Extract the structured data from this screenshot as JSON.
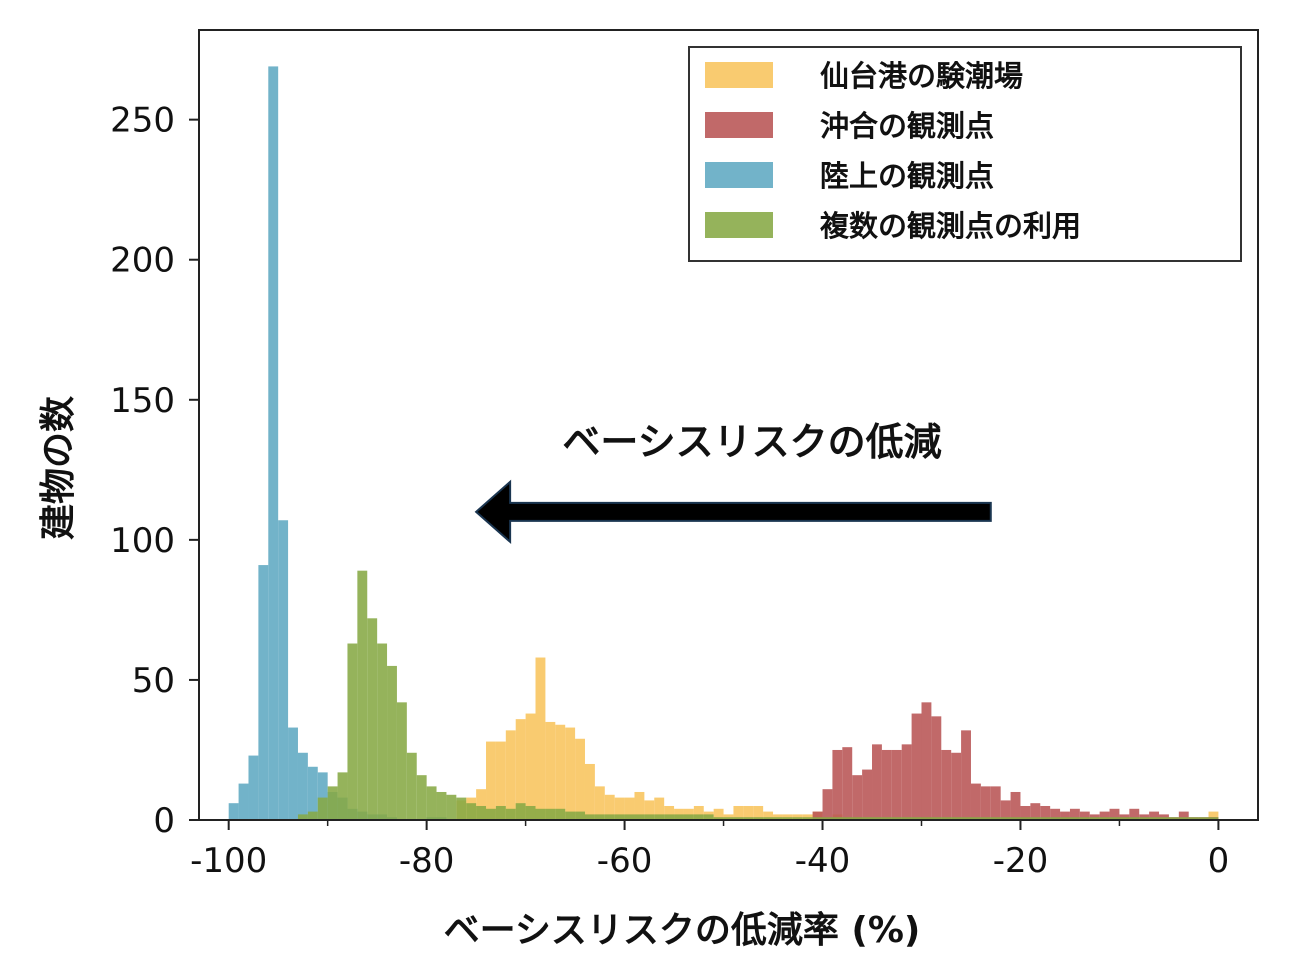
{
  "chart_data": {
    "type": "histogram",
    "xlabel": "ベーシスリスクの低減率 (%)",
    "ylabel": "建物の数",
    "xlim": [
      -103,
      4
    ],
    "ylim": [
      0,
      282
    ],
    "xticks": [
      -100,
      -80,
      -60,
      -40,
      -20,
      0
    ],
    "xtick_labels": [
      "-100",
      "-80",
      "-60",
      "-40",
      "-20",
      "0"
    ],
    "yticks": [
      0,
      50,
      100,
      150,
      200,
      250
    ],
    "ytick_labels": [
      "0",
      "50",
      "100",
      "150",
      "200",
      "250"
    ],
    "bin_width": 1,
    "grid": false,
    "legend_position": "top-right",
    "annotation": {
      "text": "ベーシスリスクの低減",
      "arrow": {
        "from_x": -23,
        "to_x": -75,
        "y": 110
      }
    },
    "series": [
      {
        "name": "仙台港の験潮場",
        "color": "#f8c45c",
        "bins": [
          [
            -77,
            7
          ],
          [
            -76,
            8
          ],
          [
            -75,
            11
          ],
          [
            -74,
            28
          ],
          [
            -73,
            28
          ],
          [
            -72,
            32
          ],
          [
            -71,
            36
          ],
          [
            -70,
            38
          ],
          [
            -69,
            58
          ],
          [
            -68,
            35
          ],
          [
            -67,
            34
          ],
          [
            -66,
            33
          ],
          [
            -65,
            29
          ],
          [
            -64,
            20
          ],
          [
            -63,
            12
          ],
          [
            -62,
            9
          ],
          [
            -61,
            8
          ],
          [
            -60,
            8
          ],
          [
            -59,
            10
          ],
          [
            -58,
            7
          ],
          [
            -57,
            8
          ],
          [
            -56,
            5
          ],
          [
            -55,
            4
          ],
          [
            -54,
            4
          ],
          [
            -53,
            5
          ],
          [
            -52,
            3
          ],
          [
            -51,
            4
          ],
          [
            -50,
            2
          ],
          [
            -49,
            5
          ],
          [
            -48,
            5
          ],
          [
            -47,
            5
          ],
          [
            -46,
            3
          ],
          [
            -45,
            2
          ],
          [
            -44,
            2
          ],
          [
            -43,
            2
          ],
          [
            -42,
            2
          ],
          [
            -41,
            3
          ],
          [
            -40,
            1
          ],
          [
            -39,
            2
          ],
          [
            -38,
            1
          ],
          [
            -37,
            1
          ],
          [
            -30,
            1
          ],
          [
            -20,
            1
          ],
          [
            -10,
            1
          ],
          [
            -1,
            3
          ]
        ]
      },
      {
        "name": "沖合の観測点",
        "color": "#b85454",
        "bins": [
          [
            -41,
            3
          ],
          [
            -40,
            11
          ],
          [
            -39,
            25
          ],
          [
            -38,
            26
          ],
          [
            -37,
            16
          ],
          [
            -36,
            18
          ],
          [
            -35,
            27
          ],
          [
            -34,
            25
          ],
          [
            -33,
            25
          ],
          [
            -32,
            27
          ],
          [
            -31,
            38
          ],
          [
            -30,
            42
          ],
          [
            -29,
            37
          ],
          [
            -28,
            25
          ],
          [
            -27,
            24
          ],
          [
            -26,
            32
          ],
          [
            -25,
            13
          ],
          [
            -24,
            12
          ],
          [
            -23,
            12
          ],
          [
            -22,
            7
          ],
          [
            -21,
            10
          ],
          [
            -20,
            5
          ],
          [
            -19,
            6
          ],
          [
            -18,
            5
          ],
          [
            -17,
            4
          ],
          [
            -16,
            3
          ],
          [
            -15,
            4
          ],
          [
            -14,
            3
          ],
          [
            -13,
            2
          ],
          [
            -12,
            3
          ],
          [
            -11,
            4
          ],
          [
            -10,
            2
          ],
          [
            -9,
            4
          ],
          [
            -8,
            2
          ],
          [
            -7,
            3
          ],
          [
            -6,
            2
          ],
          [
            -5,
            1
          ],
          [
            -4,
            3
          ],
          [
            -3,
            1
          ],
          [
            -2,
            1
          ],
          [
            -1,
            1
          ]
        ]
      },
      {
        "name": "陸上の観測点",
        "color": "#5ea9c2",
        "bins": [
          [
            -100,
            6
          ],
          [
            -99,
            13
          ],
          [
            -98,
            23
          ],
          [
            -97,
            91
          ],
          [
            -96,
            269
          ],
          [
            -95,
            107
          ],
          [
            -94,
            33
          ],
          [
            -93,
            24
          ],
          [
            -92,
            19
          ],
          [
            -91,
            17
          ],
          [
            -90,
            10
          ],
          [
            -89,
            8
          ],
          [
            -88,
            4
          ],
          [
            -87,
            3
          ],
          [
            -86,
            2
          ],
          [
            -85,
            2
          ],
          [
            -84,
            1
          ],
          [
            -80,
            1
          ],
          [
            -79,
            1
          ]
        ]
      },
      {
        "name": "複数の観測点の利用",
        "color": "#86a844",
        "bins": [
          [
            -93,
            2
          ],
          [
            -92,
            3
          ],
          [
            -91,
            8
          ],
          [
            -90,
            12
          ],
          [
            -89,
            17
          ],
          [
            -88,
            63
          ],
          [
            -87,
            89
          ],
          [
            -86,
            72
          ],
          [
            -85,
            63
          ],
          [
            -84,
            55
          ],
          [
            -83,
            42
          ],
          [
            -82,
            24
          ],
          [
            -81,
            16
          ],
          [
            -80,
            12
          ],
          [
            -79,
            10
          ],
          [
            -78,
            9
          ],
          [
            -77,
            8
          ],
          [
            -76,
            6
          ],
          [
            -75,
            5
          ],
          [
            -74,
            4
          ],
          [
            -73,
            5
          ],
          [
            -72,
            4
          ],
          [
            -71,
            6
          ],
          [
            -70,
            5
          ],
          [
            -69,
            4
          ],
          [
            -68,
            4
          ],
          [
            -67,
            4
          ],
          [
            -66,
            3
          ],
          [
            -65,
            3
          ],
          [
            -64,
            2
          ],
          [
            -63,
            2
          ],
          [
            -62,
            2
          ],
          [
            -61,
            2
          ],
          [
            -60,
            2
          ],
          [
            -59,
            2
          ],
          [
            -58,
            2
          ],
          [
            -57,
            2
          ],
          [
            -56,
            2
          ],
          [
            -55,
            2
          ],
          [
            -54,
            2
          ],
          [
            -53,
            2
          ],
          [
            -52,
            2
          ],
          [
            -51,
            1
          ],
          [
            -50,
            1
          ],
          [
            -49,
            1
          ],
          [
            -48,
            1
          ],
          [
            -47,
            1
          ],
          [
            -46,
            1
          ],
          [
            -45,
            1
          ],
          [
            -44,
            1
          ],
          [
            -43,
            1
          ],
          [
            -42,
            1
          ],
          [
            -41,
            1
          ],
          [
            -40,
            1
          ],
          [
            -39,
            1
          ],
          [
            -38,
            1
          ],
          [
            -37,
            1
          ],
          [
            -36,
            1
          ],
          [
            -35,
            1
          ],
          [
            -34,
            1
          ],
          [
            -33,
            1
          ],
          [
            -32,
            1
          ],
          [
            -31,
            1
          ],
          [
            -30,
            1
          ],
          [
            -29,
            1
          ],
          [
            -28,
            1
          ],
          [
            -27,
            1
          ],
          [
            -26,
            1
          ],
          [
            -25,
            1
          ],
          [
            -24,
            1
          ],
          [
            -23,
            1
          ],
          [
            -22,
            1
          ],
          [
            -21,
            1
          ],
          [
            -20,
            1
          ],
          [
            -19,
            1
          ],
          [
            -18,
            1
          ],
          [
            -17,
            1
          ],
          [
            -16,
            1
          ],
          [
            -15,
            1
          ],
          [
            -14,
            1
          ],
          [
            -13,
            1
          ],
          [
            -12,
            1
          ],
          [
            -11,
            1
          ],
          [
            -10,
            1
          ],
          [
            -9,
            1
          ],
          [
            -8,
            1
          ],
          [
            -7,
            1
          ],
          [
            -6,
            1
          ],
          [
            -5,
            1
          ],
          [
            -4,
            1
          ],
          [
            -3,
            1
          ],
          [
            -2,
            1
          ],
          [
            -1,
            1
          ]
        ]
      }
    ]
  }
}
